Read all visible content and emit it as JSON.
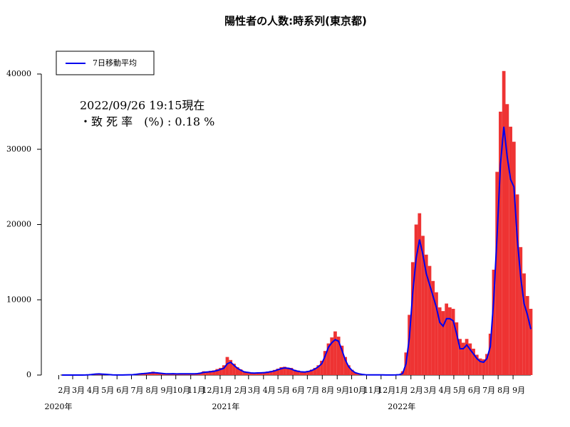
{
  "chart_data": {
    "type": "bar_line",
    "title": "陽性者の人数:時系列(東京都)",
    "annotations": [
      "2022/09/26 19:15現在",
      "・致 死 率　(%) : 0.18 %"
    ],
    "x": [
      "2020-01-27",
      "2020-02-03",
      "2020-02-10",
      "2020-02-17",
      "2020-02-24",
      "2020-03-02",
      "2020-03-09",
      "2020-03-16",
      "2020-03-23",
      "2020-03-30",
      "2020-04-06",
      "2020-04-13",
      "2020-04-20",
      "2020-04-27",
      "2020-05-04",
      "2020-05-11",
      "2020-05-18",
      "2020-05-25",
      "2020-06-01",
      "2020-06-08",
      "2020-06-15",
      "2020-06-22",
      "2020-06-29",
      "2020-07-06",
      "2020-07-13",
      "2020-07-20",
      "2020-07-27",
      "2020-08-03",
      "2020-08-10",
      "2020-08-17",
      "2020-08-24",
      "2020-08-31",
      "2020-09-07",
      "2020-09-14",
      "2020-09-21",
      "2020-09-28",
      "2020-10-05",
      "2020-10-12",
      "2020-10-19",
      "2020-10-26",
      "2020-11-02",
      "2020-11-09",
      "2020-11-16",
      "2020-11-23",
      "2020-11-30",
      "2020-12-07",
      "2020-12-14",
      "2020-12-21",
      "2020-12-28",
      "2021-01-04",
      "2021-01-11",
      "2021-01-18",
      "2021-01-25",
      "2021-02-01",
      "2021-02-08",
      "2021-02-15",
      "2021-02-22",
      "2021-03-01",
      "2021-03-08",
      "2021-03-15",
      "2021-03-22",
      "2021-03-29",
      "2021-04-05",
      "2021-04-12",
      "2021-04-19",
      "2021-04-26",
      "2021-05-03",
      "2021-05-10",
      "2021-05-17",
      "2021-05-24",
      "2021-05-31",
      "2021-06-07",
      "2021-06-14",
      "2021-06-21",
      "2021-06-28",
      "2021-07-05",
      "2021-07-12",
      "2021-07-19",
      "2021-07-26",
      "2021-08-02",
      "2021-08-09",
      "2021-08-16",
      "2021-08-23",
      "2021-08-30",
      "2021-09-06",
      "2021-09-13",
      "2021-09-20",
      "2021-09-27",
      "2021-10-04",
      "2021-10-11",
      "2021-10-18",
      "2021-10-25",
      "2021-11-01",
      "2021-11-08",
      "2021-11-15",
      "2021-11-22",
      "2021-11-29",
      "2021-12-06",
      "2021-12-13",
      "2021-12-20",
      "2021-12-27",
      "2022-01-03",
      "2022-01-10",
      "2022-01-17",
      "2022-01-24",
      "2022-01-31",
      "2022-02-07",
      "2022-02-14",
      "2022-02-21",
      "2022-02-28",
      "2022-03-07",
      "2022-03-14",
      "2022-03-21",
      "2022-03-28",
      "2022-04-04",
      "2022-04-11",
      "2022-04-18",
      "2022-04-25",
      "2022-05-02",
      "2022-05-09",
      "2022-05-16",
      "2022-05-23",
      "2022-05-30",
      "2022-06-06",
      "2022-06-13",
      "2022-06-20",
      "2022-06-27",
      "2022-07-04",
      "2022-07-11",
      "2022-07-18",
      "2022-07-25",
      "2022-08-01",
      "2022-08-08",
      "2022-08-15",
      "2022-08-22",
      "2022-08-29",
      "2022-09-05",
      "2022-09-12",
      "2022-09-19",
      "2022-09-26"
    ],
    "series": [
      {
        "color": "#ee3333",
        "values": [
          1,
          2,
          3,
          4,
          6,
          10,
          8,
          12,
          45,
          110,
          180,
          190,
          140,
          100,
          70,
          25,
          12,
          14,
          20,
          30,
          45,
          60,
          120,
          200,
          260,
          300,
          330,
          450,
          380,
          300,
          230,
          200,
          220,
          230,
          200,
          220,
          210,
          200,
          190,
          200,
          260,
          320,
          500,
          480,
          560,
          620,
          800,
          950,
          1300,
          2400,
          2000,
          1500,
          1050,
          760,
          500,
          430,
          330,
          300,
          340,
          360,
          400,
          470,
          550,
          680,
          850,
          1050,
          1100,
          1000,
          950,
          700,
          600,
          500,
          480,
          570,
          720,
          950,
          1300,
          1900,
          3200,
          4200,
          5000,
          5800,
          5100,
          3900,
          2400,
          1300,
          700,
          350,
          200,
          100,
          50,
          30,
          25,
          25,
          25,
          25,
          20,
          20,
          18,
          30,
          80,
          500,
          3000,
          8000,
          15000,
          20000,
          21500,
          18500,
          16000,
          14500,
          12500,
          11000,
          9000,
          8500,
          9500,
          9000,
          8800,
          7000,
          4800,
          4300,
          4800,
          4200,
          3500,
          2700,
          2200,
          2100,
          2800,
          5500,
          14000,
          27000,
          35000,
          40400,
          36000,
          33000,
          31000,
          24000,
          17000,
          13500,
          10500,
          8800
        ]
      },
      {
        "name": "7日移動平均",
        "color": "#0000ee",
        "values": [
          1,
          1,
          2,
          3,
          4,
          6,
          6,
          8,
          30,
          80,
          130,
          150,
          120,
          90,
          60,
          20,
          10,
          10,
          15,
          20,
          30,
          50,
          90,
          150,
          190,
          230,
          280,
          320,
          300,
          250,
          200,
          160,
          170,
          180,
          150,
          170,
          170,
          170,
          160,
          160,
          180,
          250,
          350,
          400,
          440,
          500,
          600,
          750,
          900,
          1500,
          1700,
          1300,
          900,
          650,
          420,
          350,
          280,
          260,
          280,
          300,
          320,
          380,
          450,
          550,
          700,
          850,
          950,
          900,
          800,
          600,
          500,
          420,
          400,
          470,
          600,
          800,
          1100,
          1500,
          2500,
          3700,
          4300,
          4700,
          4500,
          3300,
          2000,
          1100,
          600,
          300,
          170,
          80,
          40,
          25,
          20,
          20,
          20,
          20,
          15,
          15,
          15,
          20,
          50,
          200,
          1500,
          5000,
          11000,
          15500,
          18000,
          16000,
          13500,
          12000,
          10500,
          9000,
          7000,
          6500,
          7500,
          7500,
          7200,
          5500,
          3500,
          3500,
          4000,
          3400,
          2800,
          2200,
          1800,
          1700,
          2200,
          3800,
          10000,
          18500,
          28000,
          33000,
          29000,
          26000,
          25000,
          18000,
          13000,
          9500,
          8000,
          6100
        ]
      }
    ],
    "xlim": [
      "2020-01-24",
      "2022-09-26"
    ],
    "xticks": [
      {
        "value": "2020-02-01",
        "label": "2月"
      },
      {
        "value": "2020-03-01",
        "label": "3月"
      },
      {
        "value": "2020-04-01",
        "label": "4月"
      },
      {
        "value": "2020-05-01",
        "label": "5月"
      },
      {
        "value": "2020-06-01",
        "label": "6月"
      },
      {
        "value": "2020-07-01",
        "label": "7月"
      },
      {
        "value": "2020-08-01",
        "label": "8月"
      },
      {
        "value": "2020-09-01",
        "label": "9月"
      },
      {
        "value": "2020-10-01",
        "label": "10月"
      },
      {
        "value": "2020-11-01",
        "label": "11月"
      },
      {
        "value": "2020-12-01",
        "label": "12月"
      },
      {
        "value": "2021-01-01",
        "label": "1月"
      },
      {
        "value": "2021-02-01",
        "label": "2月"
      },
      {
        "value": "2021-03-01",
        "label": "3月"
      },
      {
        "value": "2021-04-01",
        "label": "4月"
      },
      {
        "value": "2021-05-01",
        "label": "5月"
      },
      {
        "value": "2021-06-01",
        "label": "6月"
      },
      {
        "value": "2021-07-01",
        "label": "7月"
      },
      {
        "value": "2021-08-01",
        "label": "8月"
      },
      {
        "value": "2021-09-01",
        "label": "9月"
      },
      {
        "value": "2021-10-01",
        "label": "10月"
      },
      {
        "value": "2021-11-01",
        "label": "11月"
      },
      {
        "value": "2021-12-01",
        "label": "12月"
      },
      {
        "value": "2022-01-01",
        "label": "1月"
      },
      {
        "value": "2022-02-01",
        "label": "2月"
      },
      {
        "value": "2022-03-01",
        "label": "3月"
      },
      {
        "value": "2022-04-01",
        "label": "4月"
      },
      {
        "value": "2022-05-01",
        "label": "5月"
      },
      {
        "value": "2022-06-01",
        "label": "6月"
      },
      {
        "value": "2022-07-01",
        "label": "7月"
      },
      {
        "value": "2022-08-01",
        "label": "8月"
      },
      {
        "value": "2022-09-01",
        "label": "9月"
      }
    ],
    "year_labels": [
      {
        "value": "2020-01-01",
        "label": "2020年"
      },
      {
        "value": "2021-01-01",
        "label": "2021年"
      },
      {
        "value": "2022-01-01",
        "label": "2022年"
      }
    ],
    "ylim": [
      0,
      40000
    ],
    "yticks": [
      0,
      10000,
      20000,
      30000,
      40000
    ],
    "legend": "top-left"
  }
}
